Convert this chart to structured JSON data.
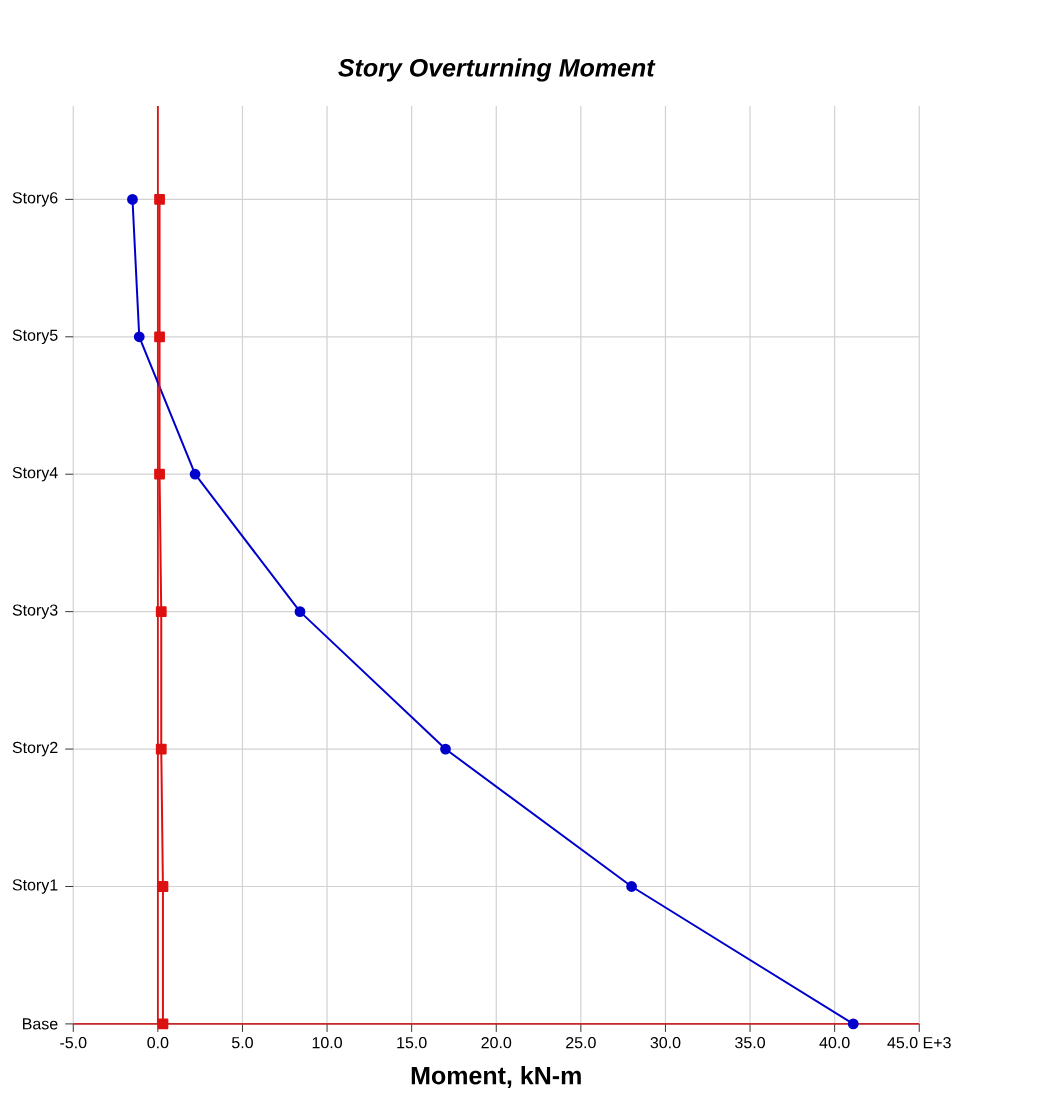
{
  "chart_data": {
    "type": "line",
    "title": "Story Overturning Moment",
    "xlabel": "Moment, kN-m",
    "orientation": "horizontal",
    "categories": [
      "Story6",
      "Story5",
      "Story4",
      "Story3",
      "Story2",
      "Story1",
      "Base"
    ],
    "series": [
      {
        "color": "#0000cc",
        "marker": "circle",
        "values": [
          -1.5,
          -1.1,
          2.2,
          8.4,
          17.0,
          28.0,
          41.1
        ]
      },
      {
        "color": "#dd1111",
        "marker": "square",
        "values": [
          0.1,
          0.1,
          0.1,
          0.2,
          0.2,
          0.3,
          0.3
        ]
      }
    ],
    "xlim": [
      -5,
      45
    ],
    "xticks": [
      {
        "value": -5,
        "label": "-5.0"
      },
      {
        "value": 0,
        "label": "0.0"
      },
      {
        "value": 5,
        "label": "5.0"
      },
      {
        "value": 10,
        "label": "10.0"
      },
      {
        "value": 15,
        "label": "15.0"
      },
      {
        "value": 20,
        "label": "20.0"
      },
      {
        "value": 25,
        "label": "25.0"
      },
      {
        "value": 30,
        "label": "30.0"
      },
      {
        "value": 35,
        "label": "35.0"
      },
      {
        "value": 40,
        "label": "40.0"
      },
      {
        "value": 45,
        "label": "45.0 E+3"
      }
    ],
    "ref_lines": [
      {
        "axis": "x",
        "value": 0,
        "color": "#dd1111"
      }
    ],
    "grid": true
  }
}
